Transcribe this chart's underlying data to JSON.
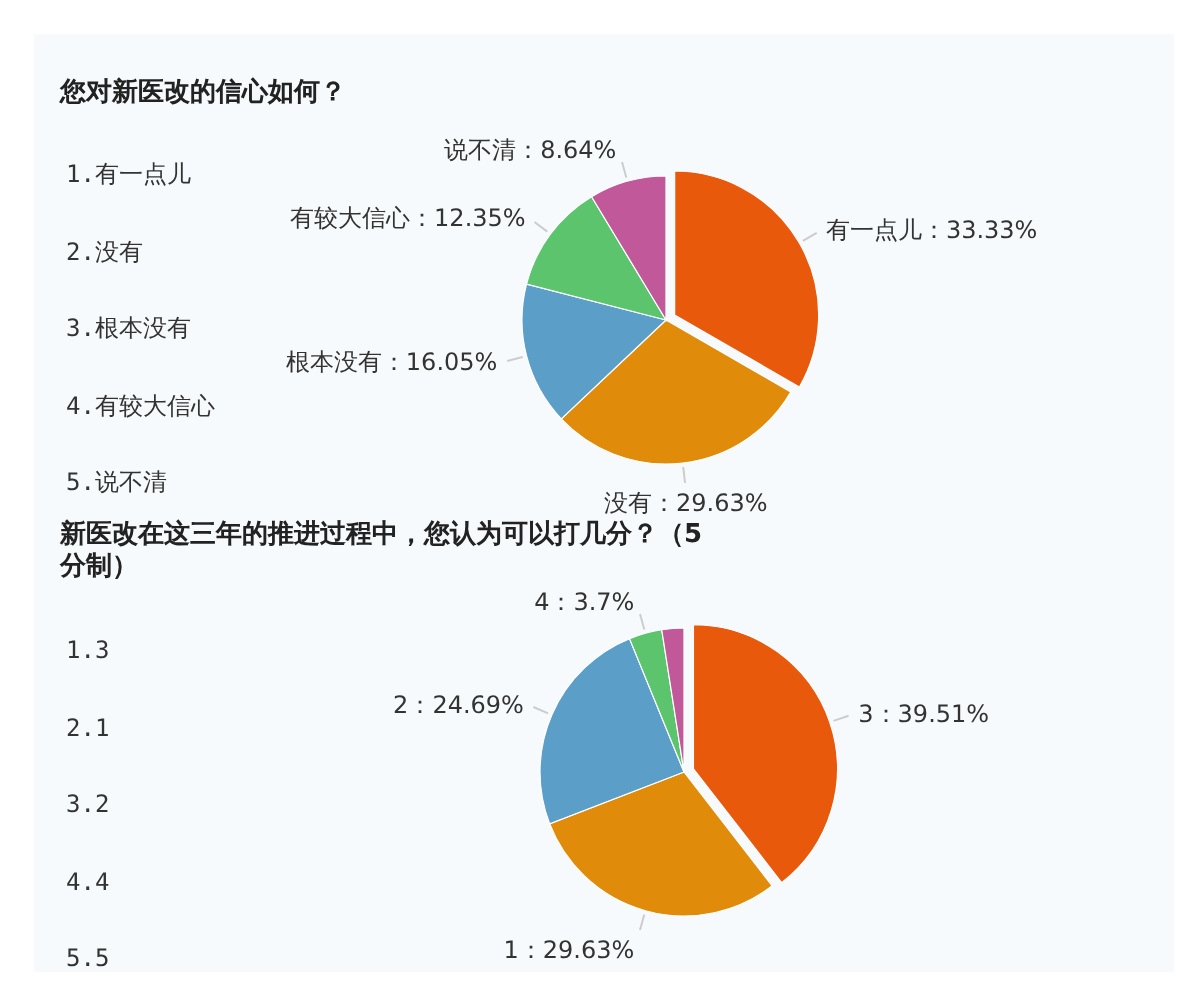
{
  "chart_data": [
    {
      "type": "pie",
      "title": "您对新医改的信心如何？",
      "categories": [
        "有一点儿",
        "没有",
        "根本没有",
        "有较大信心",
        "说不清"
      ],
      "values": [
        33.33,
        29.63,
        16.05,
        12.35,
        8.64
      ],
      "colors": [
        "#e8590c",
        "#e08c0a",
        "#5b9fc8",
        "#5bc46c",
        "#c0589a"
      ],
      "value_labels": [
        "：33.33%",
        "：29.63%",
        "：16.05%",
        "：12.35%",
        "：8.64%"
      ],
      "annotations": [
        "1.有一点儿",
        "2.没有",
        "3.根本没有",
        "4.有较大信心",
        "5.说不清"
      ]
    },
    {
      "type": "pie",
      "title": "新医改在这三年的推进过程中，您认为可以打几分？（5分制）",
      "categories": [
        "3",
        "1",
        "2",
        "4",
        null
      ],
      "values": [
        39.51,
        29.63,
        24.69,
        3.7,
        2.47
      ],
      "colors": [
        "#e8590c",
        "#e08c0a",
        "#5b9fc8",
        "#5bc46c",
        "#c0589a"
      ],
      "value_labels": [
        "：39.51%",
        "：29.63%",
        "：24.69%",
        "：3.7%",
        null
      ],
      "annotations": [
        "1.3",
        "2.1",
        "3.2",
        "4.4",
        "5.5"
      ]
    }
  ]
}
